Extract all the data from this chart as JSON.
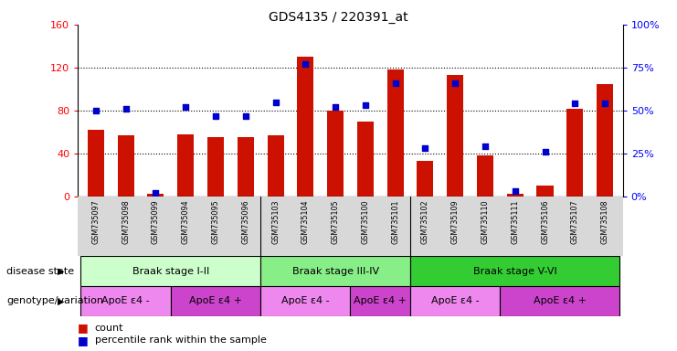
{
  "title": "GDS4135 / 220391_at",
  "samples": [
    "GSM735097",
    "GSM735098",
    "GSM735099",
    "GSM735094",
    "GSM735095",
    "GSM735096",
    "GSM735103",
    "GSM735104",
    "GSM735105",
    "GSM735100",
    "GSM735101",
    "GSM735102",
    "GSM735109",
    "GSM735110",
    "GSM735111",
    "GSM735106",
    "GSM735107",
    "GSM735108"
  ],
  "counts": [
    62,
    57,
    3,
    58,
    55,
    55,
    57,
    130,
    80,
    70,
    118,
    33,
    113,
    38,
    3,
    10,
    82,
    105
  ],
  "percentiles": [
    50,
    51,
    2,
    52,
    47,
    47,
    55,
    77,
    52,
    53,
    66,
    28,
    66,
    29,
    3,
    26,
    54,
    54
  ],
  "bar_color": "#cc1100",
  "dot_color": "#0000cc",
  "ylim_left": [
    0,
    160
  ],
  "ylim_right": [
    0,
    100
  ],
  "yticks_left": [
    0,
    40,
    80,
    120,
    160
  ],
  "ytick_labels_left": [
    "0",
    "40",
    "80",
    "120",
    "160"
  ],
  "ytick_labels_right": [
    "0%",
    "25%",
    "50%",
    "75%",
    "100%"
  ],
  "yticks_right": [
    0,
    25,
    50,
    75,
    100
  ],
  "disease_state_groups": [
    {
      "label": "Braak stage I-II",
      "start": 0,
      "end": 6,
      "color": "#ccffcc"
    },
    {
      "label": "Braak stage III-IV",
      "start": 6,
      "end": 11,
      "color": "#88ee88"
    },
    {
      "label": "Braak stage V-VI",
      "start": 11,
      "end": 18,
      "color": "#33cc33"
    }
  ],
  "genotype_groups": [
    {
      "label": "ApoE ε4 -",
      "start": 0,
      "end": 3,
      "color": "#ee88ee"
    },
    {
      "label": "ApoE ε4 +",
      "start": 3,
      "end": 6,
      "color": "#cc44cc"
    },
    {
      "label": "ApoE ε4 -",
      "start": 6,
      "end": 9,
      "color": "#ee88ee"
    },
    {
      "label": "ApoE ε4 +",
      "start": 9,
      "end": 11,
      "color": "#cc44cc"
    },
    {
      "label": "ApoE ε4 -",
      "start": 11,
      "end": 14,
      "color": "#ee88ee"
    },
    {
      "label": "ApoE ε4 +",
      "start": 14,
      "end": 18,
      "color": "#cc44cc"
    }
  ],
  "left_label_disease": "disease state",
  "left_label_genotype": "genotype/variation",
  "legend_count": "count",
  "legend_percentile": "percentile rank within the sample",
  "bg_xtick": "#d8d8d8"
}
